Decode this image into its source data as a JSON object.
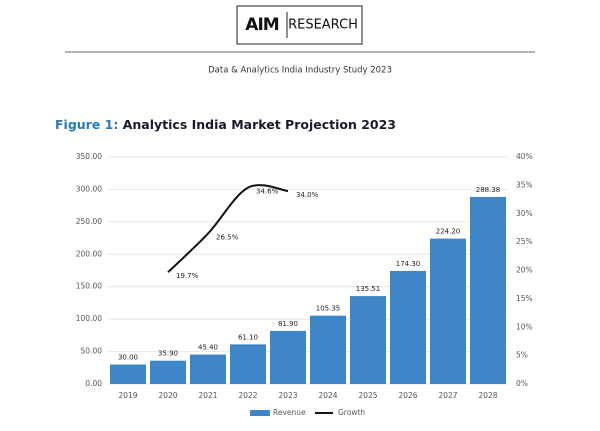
{
  "header": {
    "logo": "AIM",
    "brand": "RESEARCH",
    "study": "Data & Analytics India Industry Study 2023"
  },
  "chart_data": {
    "type": "bar",
    "figure_label": "Figure 1:",
    "title": "Analytics India Market Projection 2023",
    "categories": [
      "2019",
      "2020",
      "2021",
      "2022",
      "2023",
      "2024",
      "2025",
      "2026",
      "2027",
      "2028"
    ],
    "series": [
      {
        "name": "Revenue",
        "type": "bar",
        "color": "#3e86c6",
        "values": [
          30,
          35.9,
          45.4,
          61.1,
          81.9,
          105.35,
          135.51,
          174.3,
          224.2,
          288.38
        ],
        "value_labels": [
          "30.00",
          "35.90",
          "45.40",
          "61.10",
          "81.90",
          "105.35",
          "135.51",
          "174.30",
          "224.20",
          "288.38"
        ]
      },
      {
        "name": "Growth",
        "type": "line",
        "color": "#111111",
        "axis": "y2",
        "values": [
          null,
          19.7,
          26.5,
          34.6,
          34.0,
          null,
          null,
          null,
          null,
          null
        ],
        "value_labels": [
          null,
          "19.7%",
          "26.5%",
          "34.6%",
          "34.0%",
          null,
          null,
          null,
          null,
          null
        ]
      }
    ],
    "ylim": [
      0,
      350
    ],
    "yticks": [
      {
        "value": 0,
        "label": "0.00"
      },
      {
        "value": 50,
        "label": "50.00"
      },
      {
        "value": 100,
        "label": "100.00"
      },
      {
        "value": 150,
        "label": "150.00"
      },
      {
        "value": 200,
        "label": "200.00"
      },
      {
        "value": 250,
        "label": "250.00"
      },
      {
        "value": 300,
        "label": "300.00"
      },
      {
        "value": 350,
        "label": "350.00"
      }
    ],
    "y2lim": [
      0,
      40
    ],
    "y2ticks": [
      {
        "value": 0,
        "label": "0%"
      },
      {
        "value": 5,
        "label": "5%"
      },
      {
        "value": 10,
        "label": "10%"
      },
      {
        "value": 15,
        "label": "15%"
      },
      {
        "value": 20,
        "label": "20%"
      },
      {
        "value": 25,
        "label": "25%"
      },
      {
        "value": 30,
        "label": "30%"
      },
      {
        "value": 35,
        "label": "35%"
      },
      {
        "value": 40,
        "label": "40%"
      }
    ],
    "grid": true,
    "legend": "bottom"
  }
}
